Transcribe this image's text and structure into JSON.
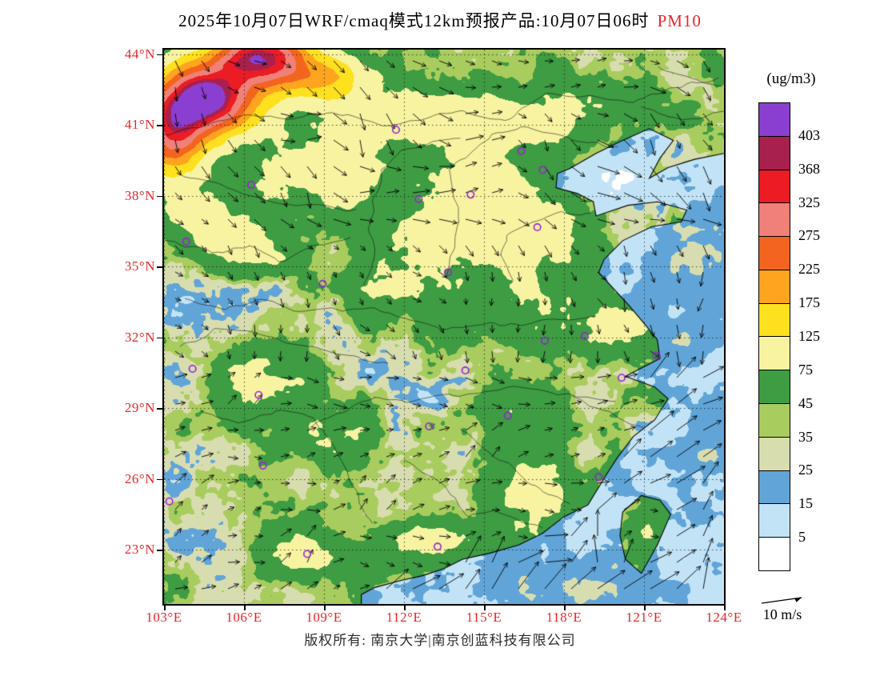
{
  "title": {
    "main": "2025年10月07日WRF/cmaq模式12km预报产品:10月07日06时",
    "species": "PM10"
  },
  "colorbar": {
    "units": "(ug/m3)"
  },
  "wind_legend": {
    "label": "10 m/s"
  },
  "footer": {
    "copyright": "版权所有: 南京大学|南京创蓝科技有限公司"
  },
  "colors": {
    "tick_red": "#e8262b",
    "marker_purple": "#9a1fd6",
    "line_black": "#000000"
  },
  "chart_data": {
    "type": "heatmap",
    "subtype": "filled-contour air-quality forecast map with wind vectors",
    "variable": "PM10",
    "units": "ug/m3",
    "title": "2025年10月07日WRF/cmaq模式12km预报产品:10月07日06时 PM10",
    "wind_reference_ms": 10,
    "lon_range": [
      103,
      124
    ],
    "lat_range": [
      20.7,
      44.2
    ],
    "lon_ticks": [
      {
        "value": 103,
        "label": "103°E"
      },
      {
        "value": 106,
        "label": "106°E"
      },
      {
        "value": 109,
        "label": "109°E"
      },
      {
        "value": 112,
        "label": "112°E"
      },
      {
        "value": 115,
        "label": "115°E"
      },
      {
        "value": 118,
        "label": "118°E"
      },
      {
        "value": 121,
        "label": "121°E"
      },
      {
        "value": 124,
        "label": "124°E"
      }
    ],
    "lat_ticks": [
      {
        "value": 44,
        "label": "44°N"
      },
      {
        "value": 41,
        "label": "41°N"
      },
      {
        "value": 38,
        "label": "38°N"
      },
      {
        "value": 35,
        "label": "35°N"
      },
      {
        "value": 32,
        "label": "32°N"
      },
      {
        "value": 29,
        "label": "29°N"
      },
      {
        "value": 26,
        "label": "26°N"
      },
      {
        "value": 23,
        "label": "23°N"
      }
    ],
    "levels": [
      5,
      15,
      25,
      35,
      45,
      75,
      125,
      175,
      225,
      275,
      325,
      368,
      403
    ],
    "palette_low_to_high": [
      "#ffffff",
      "#c2e3f6",
      "#61a5d8",
      "#d8ddb0",
      "#a9cc5e",
      "#3e9c43",
      "#f7f3a0",
      "#ffe01e",
      "#ffa41e",
      "#f3641e",
      "#f08078",
      "#eb1c24",
      "#a8204e",
      "#8a3fd0"
    ],
    "station_markers": [
      {
        "lon": 111.7,
        "lat": 40.8
      },
      {
        "lon": 116.4,
        "lat": 39.9
      },
      {
        "lon": 117.2,
        "lat": 39.1
      },
      {
        "lon": 114.5,
        "lat": 38.05
      },
      {
        "lon": 112.55,
        "lat": 37.87
      },
      {
        "lon": 117.0,
        "lat": 36.67
      },
      {
        "lon": 106.27,
        "lat": 38.47
      },
      {
        "lon": 103.83,
        "lat": 36.06
      },
      {
        "lon": 108.95,
        "lat": 34.27
      },
      {
        "lon": 113.65,
        "lat": 34.76
      },
      {
        "lon": 118.78,
        "lat": 32.06
      },
      {
        "lon": 121.47,
        "lat": 31.23
      },
      {
        "lon": 117.28,
        "lat": 31.86
      },
      {
        "lon": 114.3,
        "lat": 30.6
      },
      {
        "lon": 104.07,
        "lat": 30.67
      },
      {
        "lon": 106.55,
        "lat": 29.56
      },
      {
        "lon": 112.94,
        "lat": 28.23
      },
      {
        "lon": 115.89,
        "lat": 28.68
      },
      {
        "lon": 120.16,
        "lat": 30.29
      },
      {
        "lon": 106.71,
        "lat": 26.57
      },
      {
        "lon": 119.3,
        "lat": 26.08
      },
      {
        "lon": 103.2,
        "lat": 25.05
      },
      {
        "lon": 113.26,
        "lat": 23.13
      },
      {
        "lon": 108.37,
        "lat": 22.82
      }
    ],
    "field_blobs": [
      {
        "lon": 104.6,
        "lat": 42.1,
        "amp": 400,
        "sx": 1.7,
        "sy": 1.4,
        "domain": "land"
      },
      {
        "lon": 106.6,
        "lat": 43.9,
        "amp": 330,
        "sx": 1.7,
        "sy": 1.1,
        "domain": "land"
      },
      {
        "lon": 103.3,
        "lat": 40.6,
        "amp": 240,
        "sx": 1.2,
        "sy": 1.7,
        "domain": "land"
      },
      {
        "lon": 108.8,
        "lat": 43.0,
        "amp": 130,
        "sx": 1.9,
        "sy": 1.0,
        "domain": "land"
      },
      {
        "lon": 108.0,
        "lat": 39.2,
        "amp": 50,
        "sx": 2.0,
        "sy": 1.4,
        "domain": "land"
      },
      {
        "lon": 112.3,
        "lat": 41.4,
        "amp": 75,
        "sx": 2.9,
        "sy": 1.1,
        "domain": "land"
      },
      {
        "lon": 116.2,
        "lat": 40.9,
        "amp": 55,
        "sx": 2.1,
        "sy": 1.1,
        "domain": "land"
      },
      {
        "lon": 118.8,
        "lat": 41.9,
        "amp": 40,
        "sx": 1.6,
        "sy": 1.0,
        "domain": "land"
      },
      {
        "lon": 114.8,
        "lat": 38.4,
        "amp": 58,
        "sx": 1.6,
        "sy": 1.9,
        "domain": "land"
      },
      {
        "lon": 116.9,
        "lat": 36.6,
        "amp": 52,
        "sx": 2.1,
        "sy": 1.5,
        "domain": "land"
      },
      {
        "lon": 116.1,
        "lat": 35.1,
        "amp": 34,
        "sx": 1.0,
        "sy": 0.9,
        "domain": "land"
      },
      {
        "lon": 113.2,
        "lat": 36.2,
        "amp": 46,
        "sx": 1.8,
        "sy": 1.8,
        "domain": "land"
      },
      {
        "lon": 110.0,
        "lat": 38.9,
        "amp": 55,
        "sx": 1.5,
        "sy": 1.5,
        "domain": "land"
      },
      {
        "lon": 105.9,
        "lat": 35.7,
        "amp": 55,
        "sx": 1.8,
        "sy": 1.3,
        "domain": "land"
      },
      {
        "lon": 104.3,
        "lat": 37.2,
        "amp": 55,
        "sx": 1.4,
        "sy": 1.1,
        "domain": "land"
      },
      {
        "lon": 111.6,
        "lat": 34.1,
        "amp": 36,
        "sx": 2.0,
        "sy": 1.2,
        "domain": "land"
      },
      {
        "lon": 106.4,
        "lat": 30.3,
        "amp": 46,
        "sx": 2.0,
        "sy": 1.5,
        "domain": "land"
      },
      {
        "lon": 109.4,
        "lat": 27.9,
        "amp": 36,
        "sx": 1.4,
        "sy": 1.2,
        "domain": "land"
      },
      {
        "lon": 117.3,
        "lat": 33.0,
        "amp": 40,
        "sx": 2.2,
        "sy": 1.3,
        "domain": "land"
      },
      {
        "lon": 119.9,
        "lat": 32.1,
        "amp": 48,
        "sx": 1.4,
        "sy": 1.1,
        "domain": "land"
      },
      {
        "lon": 115.9,
        "lat": 28.7,
        "amp": 34,
        "sx": 1.5,
        "sy": 1.5,
        "domain": "land"
      },
      {
        "lon": 116.9,
        "lat": 25.4,
        "amp": 46,
        "sx": 1.7,
        "sy": 1.8,
        "domain": "land"
      },
      {
        "lon": 113.1,
        "lat": 23.4,
        "amp": 55,
        "sx": 1.9,
        "sy": 0.9,
        "domain": "land"
      },
      {
        "lon": 108.3,
        "lat": 22.9,
        "amp": 42,
        "sx": 1.6,
        "sy": 1.0,
        "domain": "land"
      },
      {
        "lon": 121.1,
        "lat": 23.7,
        "amp": 34,
        "sx": 0.5,
        "sy": 1.0,
        "domain": "land"
      },
      {
        "lon": 111.6,
        "lat": 30.6,
        "amp": -13,
        "sx": 2.2,
        "sy": 1.6,
        "domain": "land"
      },
      {
        "lon": 114.2,
        "lat": 29.6,
        "amp": -11,
        "sx": 2.0,
        "sy": 1.5,
        "domain": "land"
      },
      {
        "lon": 107.9,
        "lat": 32.6,
        "amp": -11,
        "sx": 1.8,
        "sy": 1.5,
        "domain": "land"
      },
      {
        "lon": 106.3,
        "lat": 33.4,
        "amp": -10,
        "sx": 2.4,
        "sy": 1.2,
        "domain": "land"
      },
      {
        "lon": 113.9,
        "lat": 26.9,
        "amp": -9,
        "sx": 1.6,
        "sy": 1.6,
        "domain": "land"
      },
      {
        "lon": 119.5,
        "lat": 28.6,
        "amp": -8,
        "sx": 1.5,
        "sy": 1.3,
        "domain": "land"
      },
      {
        "lon": 104.5,
        "lat": 23.5,
        "amp": -14,
        "sx": 2.2,
        "sy": 1.8,
        "domain": "land"
      },
      {
        "lon": 104.0,
        "lat": 26.2,
        "amp": -10,
        "sx": 2.0,
        "sy": 1.5,
        "domain": "land"
      },
      {
        "lon": 103.8,
        "lat": 31.5,
        "amp": -16,
        "sx": 1.6,
        "sy": 2.4,
        "domain": "land"
      },
      {
        "lon": 103.5,
        "lat": 34.3,
        "amp": -10,
        "sx": 1.4,
        "sy": 1.4,
        "domain": "land"
      },
      {
        "lon": 123.4,
        "lat": 35.6,
        "amp": 13,
        "sx": 1.7,
        "sy": 2.3,
        "domain": "sea"
      },
      {
        "lon": 122.7,
        "lat": 31.9,
        "amp": 9,
        "sx": 1.3,
        "sy": 1.1,
        "domain": "sea"
      },
      {
        "lon": 123.2,
        "lat": 27.0,
        "amp": 8,
        "sx": 2.0,
        "sy": 1.6,
        "domain": "sea"
      },
      {
        "lon": 118.6,
        "lat": 21.6,
        "amp": 12,
        "sx": 2.6,
        "sy": 1.3,
        "domain": "sea"
      },
      {
        "lon": 120.1,
        "lat": 38.7,
        "amp": -5,
        "sx": 1.7,
        "sy": 1.2,
        "domain": "sea"
      },
      {
        "lon": 123.6,
        "lat": 22.3,
        "amp": -5,
        "sx": 2.0,
        "sy": 2.0,
        "domain": "sea"
      }
    ],
    "coast_polygon": [
      [
        103,
        44.2
      ],
      [
        124,
        44.2
      ],
      [
        124,
        39.8
      ],
      [
        122.9,
        39.55
      ],
      [
        121.9,
        39.2
      ],
      [
        121.2,
        38.75
      ],
      [
        121.6,
        39.6
      ],
      [
        122.1,
        40.35
      ],
      [
        121.2,
        40.85
      ],
      [
        120.1,
        40.3
      ],
      [
        119.2,
        39.8
      ],
      [
        118.2,
        39.15
      ],
      [
        117.75,
        38.95
      ],
      [
        117.7,
        38.35
      ],
      [
        118.5,
        38.1
      ],
      [
        119.1,
        37.75
      ],
      [
        119.2,
        37.15
      ],
      [
        120.4,
        37.6
      ],
      [
        121.5,
        37.75
      ],
      [
        122.6,
        37.4
      ],
      [
        122.4,
        36.9
      ],
      [
        121.3,
        36.7
      ],
      [
        120.2,
        36.1
      ],
      [
        119.5,
        35.3
      ],
      [
        119.3,
        34.75
      ],
      [
        120.4,
        33.4
      ],
      [
        121.0,
        32.6
      ],
      [
        121.5,
        31.9
      ],
      [
        121.6,
        31.1
      ],
      [
        120.3,
        30.35
      ],
      [
        121.4,
        29.9
      ],
      [
        121.9,
        29.4
      ],
      [
        121.4,
        28.5
      ],
      [
        120.6,
        27.8
      ],
      [
        120.0,
        26.9
      ],
      [
        119.6,
        26.2
      ],
      [
        118.9,
        24.9
      ],
      [
        118.0,
        24.4
      ],
      [
        117.2,
        23.7
      ],
      [
        116.3,
        23.2
      ],
      [
        115.2,
        22.85
      ],
      [
        114.2,
        22.6
      ],
      [
        113.5,
        22.2
      ],
      [
        112.7,
        21.9
      ],
      [
        111.9,
        21.7
      ],
      [
        110.9,
        21.4
      ],
      [
        110.4,
        21.1
      ],
      [
        110.4,
        20.7
      ],
      [
        103,
        20.7
      ]
    ],
    "taiwan_polygon": [
      [
        120.9,
        25.3
      ],
      [
        121.6,
        25.1
      ],
      [
        122.0,
        24.5
      ],
      [
        121.5,
        23.2
      ],
      [
        120.9,
        22.0
      ],
      [
        120.3,
        22.6
      ],
      [
        120.1,
        23.6
      ],
      [
        120.2,
        24.6
      ]
    ],
    "province_borders": [
      [
        [
          103,
          36.1
        ],
        [
          104.8,
          35.6
        ],
        [
          106.2,
          35.9
        ],
        [
          107.3,
          35.2
        ],
        [
          108.6,
          35.9
        ],
        [
          110.0,
          36.2
        ]
      ],
      [
        [
          103.6,
          38.9
        ],
        [
          105.2,
          38.5
        ],
        [
          106.5,
          37.9
        ],
        [
          107.5,
          37.6
        ],
        [
          108.8,
          37.6
        ],
        [
          110.2,
          37.4
        ]
      ],
      [
        [
          103,
          40.6
        ],
        [
          104.5,
          41.0
        ],
        [
          106.0,
          41.4
        ],
        [
          107.8,
          41.3
        ],
        [
          109.5,
          41.5
        ],
        [
          111.2,
          41.0
        ],
        [
          112.8,
          41.3
        ],
        [
          114.2,
          41.6
        ],
        [
          115.8,
          41.2
        ],
        [
          117.3,
          42.3
        ],
        [
          119.0,
          42.2
        ],
        [
          120.6,
          42.0
        ],
        [
          122.2,
          42.6
        ],
        [
          123.8,
          43.0
        ]
      ],
      [
        [
          110.5,
          34.2
        ],
        [
          110.9,
          35.3
        ],
        [
          110.7,
          36.6
        ],
        [
          110.9,
          37.8
        ],
        [
          111.2,
          39.1
        ],
        [
          111.9,
          39.9
        ],
        [
          113.1,
          40.3
        ],
        [
          114.1,
          40.5
        ]
      ],
      [
        [
          113.6,
          34.6
        ],
        [
          113.9,
          35.8
        ],
        [
          114.1,
          36.9
        ],
        [
          113.9,
          38.1
        ],
        [
          113.7,
          39.1
        ],
        [
          114.4,
          39.8
        ],
        [
          115.3,
          40.6
        ],
        [
          116.4,
          40.9
        ],
        [
          117.6,
          40.6
        ],
        [
          118.9,
          40.3
        ],
        [
          120.0,
          40.0
        ]
      ],
      [
        [
          116.1,
          34.4
        ],
        [
          115.6,
          35.5
        ],
        [
          115.9,
          36.3
        ],
        [
          116.8,
          36.9
        ],
        [
          117.9,
          37.3
        ],
        [
          119.0,
          37.2
        ]
      ],
      [
        [
          103.8,
          33.7
        ],
        [
          105.3,
          33.2
        ],
        [
          106.5,
          33.6
        ],
        [
          107.9,
          33.2
        ],
        [
          109.5,
          33.2
        ],
        [
          110.9,
          33.2
        ],
        [
          112.2,
          32.7
        ],
        [
          113.6,
          32.4
        ],
        [
          115.0,
          32.6
        ],
        [
          116.4,
          32.5
        ],
        [
          117.8,
          32.8
        ],
        [
          119.2,
          32.9
        ]
      ],
      [
        [
          103.6,
          31.6
        ],
        [
          104.9,
          32.3
        ],
        [
          106.3,
          32.2
        ],
        [
          107.6,
          31.8
        ],
        [
          108.9,
          31.5
        ],
        [
          110.1,
          31.2
        ],
        [
          111.4,
          30.9
        ]
      ],
      [
        [
          108.4,
          28.2
        ],
        [
          109.7,
          28.8
        ],
        [
          110.9,
          29.5
        ],
        [
          112.1,
          29.3
        ],
        [
          113.5,
          29.5
        ],
        [
          114.8,
          29.7
        ],
        [
          116.1,
          29.9
        ],
        [
          117.4,
          29.7
        ],
        [
          118.7,
          29.5
        ],
        [
          119.9,
          29.2
        ]
      ],
      [
        [
          104.4,
          28.9
        ],
        [
          105.8,
          28.4
        ],
        [
          107.2,
          28.9
        ],
        [
          108.6,
          28.6
        ],
        [
          109.4,
          27.3
        ],
        [
          109.9,
          26.1
        ],
        [
          110.4,
          25.0
        ],
        [
          110.8,
          24.1
        ]
      ],
      [
        [
          112.0,
          26.8
        ],
        [
          113.2,
          26.0
        ],
        [
          113.9,
          25.2
        ],
        [
          114.4,
          24.4
        ],
        [
          115.4,
          24.6
        ],
        [
          116.4,
          24.2
        ],
        [
          117.2,
          23.9
        ]
      ],
      [
        [
          114.1,
          28.1
        ],
        [
          115.0,
          27.3
        ],
        [
          115.9,
          26.6
        ],
        [
          116.6,
          25.9
        ],
        [
          117.4,
          25.4
        ],
        [
          118.2,
          24.9
        ]
      ],
      [
        [
          118.3,
          29.5
        ],
        [
          119.3,
          29.0
        ],
        [
          120.2,
          28.5
        ],
        [
          121.0,
          28.1
        ]
      ],
      [
        [
          120.9,
          41.8
        ],
        [
          121.9,
          41.3
        ],
        [
          123.0,
          41.3
        ],
        [
          124.0,
          41.6
        ]
      ],
      [
        [
          121.5,
          43.4
        ],
        [
          122.6,
          43.1
        ],
        [
          123.9,
          42.6
        ]
      ]
    ]
  }
}
